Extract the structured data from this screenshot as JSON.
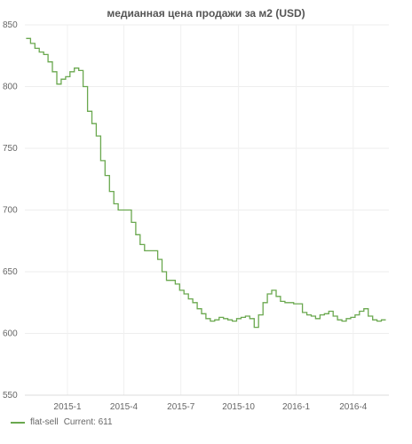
{
  "chart_data": {
    "type": "line",
    "title": "медианная цена продажи за м2 (USD)",
    "xlabel": "",
    "ylabel": "",
    "ylim": [
      550,
      850
    ],
    "yticks": [
      550,
      600,
      650,
      700,
      750,
      800,
      850
    ],
    "xticks": [
      "2015-1",
      "2015-4",
      "2015-7",
      "2015-10",
      "2016-1",
      "2016-4"
    ],
    "x_range_start": "2014-10-25",
    "x_range_end": "2016-05-28",
    "grid": true,
    "legend_placement": "bottom-left",
    "series": [
      {
        "name": "flat-sell",
        "color": "#6aa84f",
        "x": [
          "2014-10-27",
          "2014-11-03",
          "2014-11-10",
          "2014-11-17",
          "2014-11-24",
          "2014-12-01",
          "2014-12-08",
          "2014-12-15",
          "2014-12-22",
          "2014-12-29",
          "2015-01-05",
          "2015-01-12",
          "2015-01-19",
          "2015-01-26",
          "2015-02-02",
          "2015-02-09",
          "2015-02-16",
          "2015-02-23",
          "2015-03-02",
          "2015-03-09",
          "2015-03-16",
          "2015-03-23",
          "2015-03-30",
          "2015-04-06",
          "2015-04-13",
          "2015-04-20",
          "2015-04-27",
          "2015-05-04",
          "2015-05-11",
          "2015-05-18",
          "2015-05-25",
          "2015-06-01",
          "2015-06-08",
          "2015-06-15",
          "2015-06-22",
          "2015-06-29",
          "2015-07-06",
          "2015-07-13",
          "2015-07-20",
          "2015-07-27",
          "2015-08-03",
          "2015-08-10",
          "2015-08-17",
          "2015-08-24",
          "2015-08-31",
          "2015-09-07",
          "2015-09-14",
          "2015-09-21",
          "2015-09-28",
          "2015-10-05",
          "2015-10-12",
          "2015-10-19",
          "2015-10-26",
          "2015-11-02",
          "2015-11-09",
          "2015-11-16",
          "2015-11-23",
          "2015-11-30",
          "2015-12-07",
          "2015-12-14",
          "2015-12-21",
          "2015-12-28",
          "2016-01-04",
          "2016-01-11",
          "2016-01-18",
          "2016-01-25",
          "2016-02-01",
          "2016-02-08",
          "2016-02-15",
          "2016-02-22",
          "2016-02-29",
          "2016-03-07",
          "2016-03-14",
          "2016-03-21",
          "2016-03-28",
          "2016-04-04",
          "2016-04-11",
          "2016-04-18",
          "2016-04-25",
          "2016-05-02",
          "2016-05-09",
          "2016-05-16",
          "2016-05-23"
        ],
        "values": [
          839,
          835,
          831,
          828,
          826,
          820,
          812,
          802,
          806,
          808,
          812,
          815,
          813,
          800,
          780,
          770,
          760,
          740,
          728,
          715,
          705,
          700,
          700,
          700,
          690,
          680,
          672,
          667,
          667,
          667,
          660,
          650,
          643,
          643,
          640,
          635,
          632,
          628,
          625,
          620,
          616,
          612,
          610,
          611,
          613,
          612,
          611,
          610,
          612,
          613,
          614,
          612,
          605,
          615,
          625,
          632,
          635,
          630,
          626,
          625,
          625,
          624,
          624,
          617,
          615,
          614,
          612,
          615,
          616,
          618,
          614,
          611,
          610,
          612,
          613,
          615,
          618,
          620,
          614,
          611,
          610,
          611,
          611
        ]
      }
    ],
    "current_label": "Current: 611"
  }
}
